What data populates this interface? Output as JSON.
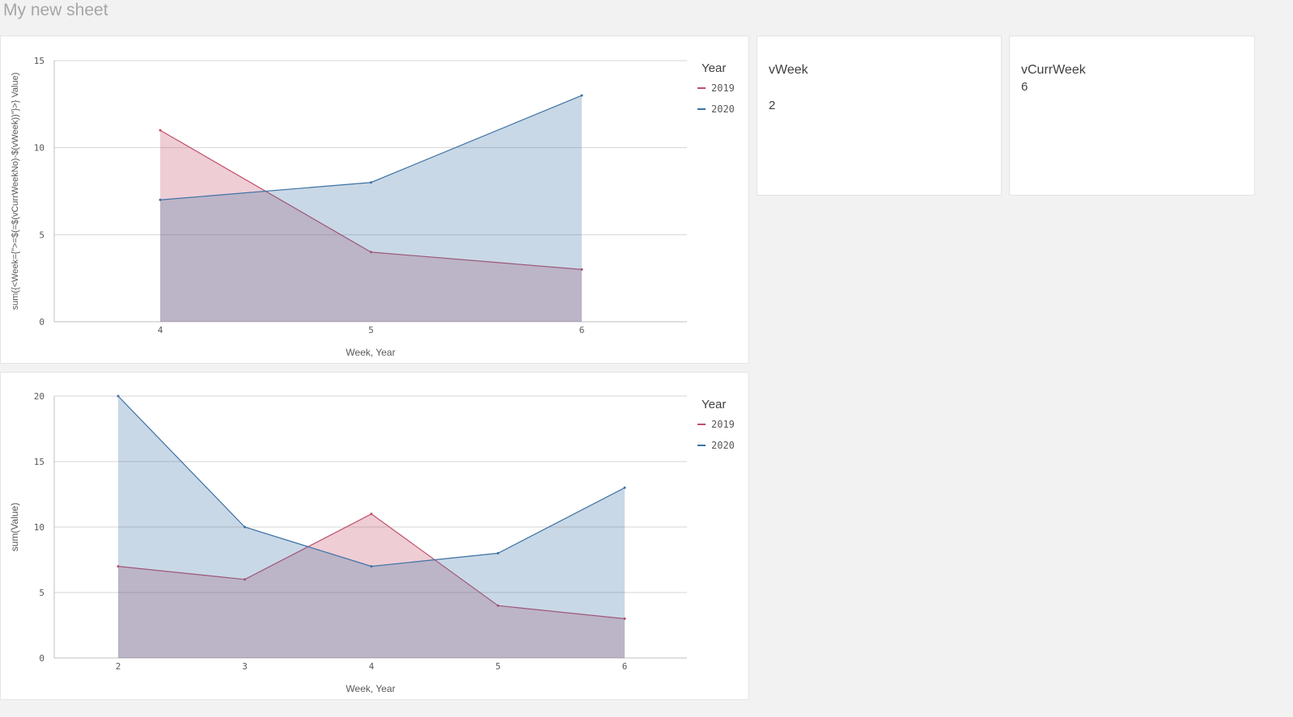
{
  "sheet": {
    "title": "My new sheet"
  },
  "kpis": [
    {
      "title": "vWeek",
      "value": "2"
    },
    {
      "title": "vCurrWeek",
      "value": "6"
    }
  ],
  "colors": {
    "2019": "#c14d68",
    "2020": "#3d72a4"
  },
  "chart_data": [
    {
      "type": "area",
      "title": "",
      "xlabel": "Week, Year",
      "ylabel": "sum({<Week={\">=$(=$(vCurrWeekNo)-$(vWeek))\"}>} Value)",
      "categories": [
        "4",
        "5",
        "6"
      ],
      "ylim": [
        0,
        15
      ],
      "yticks": [
        0,
        5,
        10,
        15
      ],
      "grid": true,
      "legend": {
        "title": "Year",
        "placement": "right"
      },
      "series": [
        {
          "name": "2019",
          "values": [
            11,
            4,
            3
          ]
        },
        {
          "name": "2020",
          "values": [
            7,
            8,
            13
          ]
        }
      ]
    },
    {
      "type": "area",
      "title": "",
      "xlabel": "Week, Year",
      "ylabel": "sum(Value)",
      "categories": [
        "2",
        "3",
        "4",
        "5",
        "6"
      ],
      "ylim": [
        0,
        20
      ],
      "yticks": [
        0,
        5,
        10,
        15,
        20
      ],
      "grid": true,
      "legend": {
        "title": "Year",
        "placement": "right"
      },
      "series": [
        {
          "name": "2019",
          "values": [
            7,
            6,
            11,
            4,
            3
          ]
        },
        {
          "name": "2020",
          "values": [
            20,
            10,
            7,
            8,
            13
          ]
        }
      ]
    }
  ]
}
